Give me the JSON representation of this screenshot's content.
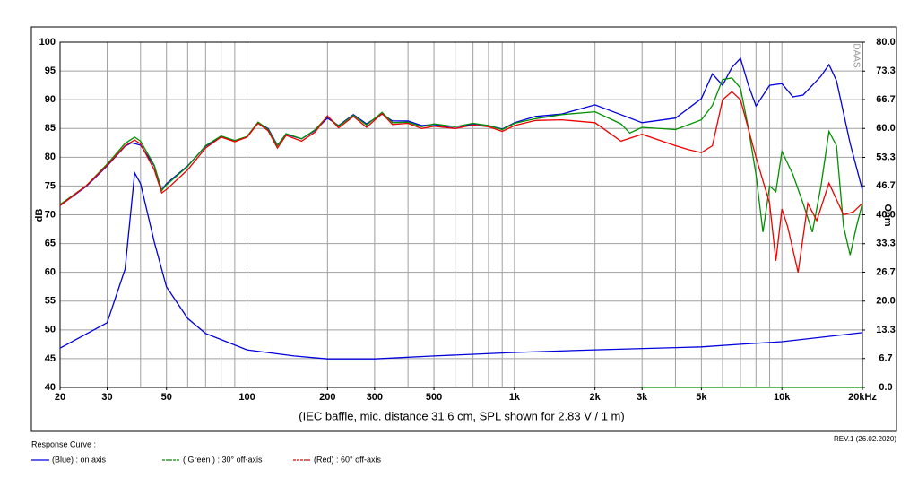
{
  "chart_data": {
    "type": "line",
    "ylabel": "dB",
    "y2label": "Ohm",
    "subtitle": "(IEC baffle, mic. distance 31.6 cm, SPL shown for 2.83 V / 1 m)",
    "legend_title": "Response Curve :",
    "revision": "REV.1 (26.02.2020)",
    "watermark": "DAAS",
    "xscale": "log",
    "grid": true,
    "xlim": [
      20,
      20000
    ],
    "xticks": [
      20,
      30,
      50,
      100,
      200,
      300,
      500,
      {
        "value": 1000,
        "label": "1k"
      },
      {
        "value": 2000,
        "label": "2k"
      },
      {
        "value": 3000,
        "label": "3k"
      },
      {
        "value": 5000,
        "label": "5k"
      },
      {
        "value": 10000,
        "label": "10k"
      },
      {
        "value": 20000,
        "label": "20kHz"
      }
    ],
    "xgrid": [
      20,
      30,
      40,
      50,
      60,
      70,
      80,
      90,
      100,
      200,
      300,
      400,
      500,
      600,
      700,
      800,
      900,
      1000,
      2000,
      3000,
      4000,
      5000,
      6000,
      7000,
      8000,
      9000,
      10000,
      20000
    ],
    "ylim": [
      40,
      100
    ],
    "yticks": [
      40,
      45,
      50,
      55,
      60,
      65,
      70,
      75,
      80,
      85,
      90,
      95,
      100
    ],
    "y2lim": [
      0,
      80
    ],
    "y2ticks": [
      {
        "value": 0,
        "label": "0.0"
      },
      6.7,
      13.3,
      {
        "value": 20,
        "label": "20.0"
      },
      26.7,
      33.3,
      {
        "value": 40,
        "label": "40.0"
      },
      46.7,
      53.3,
      {
        "value": 60,
        "label": "60.0"
      },
      66.7,
      73.3,
      {
        "value": 80,
        "label": "80.0"
      }
    ],
    "series": [
      {
        "name": "(Blue)  : on axis",
        "color": "#0000dd",
        "x": [
          20,
          25,
          30,
          35,
          37,
          40,
          45,
          48,
          50,
          60,
          70,
          80,
          90,
          100,
          110,
          120,
          130,
          140,
          160,
          180,
          200,
          220,
          250,
          280,
          320,
          350,
          400,
          450,
          500,
          600,
          700,
          800,
          900,
          1000,
          1200,
          1500,
          2000,
          2500,
          3000,
          4000,
          5000,
          5500,
          6000,
          6500,
          7000,
          7500,
          8000,
          9000,
          10000,
          11000,
          12000,
          14000,
          15000,
          16000,
          18000,
          20000
        ],
        "values": [
          71.6,
          74.9,
          78.5,
          81.9,
          82.5,
          82.1,
          78.5,
          74.3,
          75.4,
          78.5,
          81.9,
          83.5,
          82.9,
          83.5,
          86,
          85,
          82.1,
          84,
          83.2,
          84.7,
          86.8,
          85.5,
          87.4,
          85.8,
          87.5,
          86.3,
          86.3,
          85.5,
          85.7,
          85,
          85.8,
          85.5,
          84.9,
          86,
          87.1,
          87.5,
          89.1,
          87.4,
          86,
          86.8,
          90.2,
          94.5,
          92.5,
          95.6,
          97.2,
          92.5,
          88.9,
          92.5,
          92.8,
          90.5,
          90.8,
          94.1,
          96.1,
          93.3,
          82.4,
          74.3
        ]
      },
      {
        "name": "( Green ) : 30° off-axis",
        "color": "#009000",
        "x": [
          20,
          25,
          30,
          35,
          38,
          40,
          45,
          48,
          50,
          60,
          70,
          80,
          90,
          100,
          110,
          120,
          130,
          140,
          160,
          180,
          200,
          220,
          250,
          280,
          320,
          350,
          400,
          450,
          500,
          600,
          700,
          800,
          900,
          1000,
          1200,
          1500,
          2000,
          2500,
          2700,
          3000,
          4000,
          5000,
          5500,
          6000,
          6500,
          7000,
          7500,
          8000,
          8500,
          9000,
          9500,
          10000,
          11000,
          12000,
          13000,
          14000,
          15000,
          16000,
          17000,
          18000,
          19000,
          20000
        ],
        "values": [
          71.8,
          75,
          78.8,
          82.4,
          83.5,
          82.8,
          78.6,
          74.2,
          75.2,
          78.4,
          82,
          83.7,
          82.9,
          83.6,
          86.1,
          84.8,
          82,
          84.1,
          83.2,
          84.8,
          87.1,
          85.4,
          87.3,
          85.6,
          87.8,
          86,
          86.1,
          85.3,
          85.8,
          85.3,
          85.9,
          85.5,
          84.8,
          85.9,
          86.7,
          87.4,
          87.9,
          85.8,
          84.2,
          85.2,
          84.8,
          86.5,
          89,
          93.5,
          93.8,
          92,
          85,
          77,
          67,
          75,
          74,
          81,
          77,
          72,
          67,
          75,
          84.5,
          82,
          68,
          63,
          68,
          72
        ]
      },
      {
        "name": "(Red) : 60° off-axis",
        "color": "#ee0000",
        "x": [
          20,
          25,
          30,
          35,
          38,
          40,
          45,
          48,
          50,
          60,
          70,
          80,
          90,
          100,
          110,
          120,
          130,
          140,
          160,
          180,
          200,
          220,
          250,
          280,
          320,
          350,
          400,
          450,
          500,
          600,
          700,
          800,
          900,
          1000,
          1200,
          1500,
          2000,
          2500,
          3000,
          4000,
          4500,
          5000,
          5500,
          6000,
          6500,
          7000,
          8000,
          9000,
          9500,
          10000,
          10500,
          11500,
          12500,
          13500,
          15000,
          17000,
          18500,
          20000
        ],
        "values": [
          71.6,
          75,
          78.6,
          82,
          83,
          82.3,
          77.8,
          73.8,
          74.4,
          77.8,
          81.6,
          83.5,
          82.7,
          83.5,
          85.9,
          84.6,
          81.6,
          83.8,
          82.8,
          84.4,
          87.2,
          85.1,
          87.1,
          85.2,
          87.6,
          85.7,
          85.9,
          85,
          85.4,
          85,
          85.6,
          85.3,
          84.5,
          85.5,
          86.4,
          86.5,
          86,
          82.8,
          84,
          82,
          81.3,
          80.8,
          82,
          90,
          91.4,
          90,
          80,
          72,
          62,
          71,
          68,
          60,
          72,
          69,
          75.5,
          70,
          70.5,
          72
        ]
      },
      {
        "color": "#0000dd",
        "axis": "y2",
        "x": [
          20,
          30,
          35,
          38,
          40,
          45,
          50,
          60,
          70,
          100,
          150,
          200,
          300,
          500,
          1000,
          2000,
          5000,
          7000,
          10000,
          20000
        ],
        "values": [
          9.1,
          15,
          27.4,
          49.7,
          47.2,
          33.7,
          23.3,
          16,
          12.5,
          8.7,
          7.3,
          6.6,
          6.6,
          7.3,
          8.1,
          8.7,
          9.4,
          10,
          10.6,
          12.7
        ]
      },
      {
        "color": "#009000",
        "axis": "y2",
        "x": [
          3000,
          20000
        ],
        "values": [
          0,
          0
        ]
      }
    ]
  }
}
